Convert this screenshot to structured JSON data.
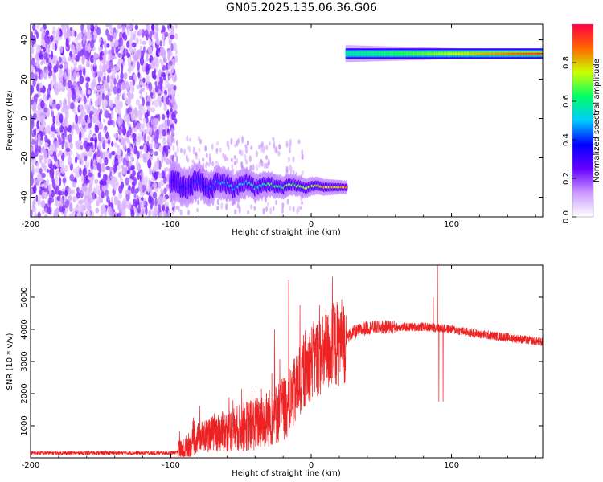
{
  "title": "GN05.2025.135.06.36.G06",
  "chart_data": [
    {
      "type": "heatmap",
      "title": "GN05.2025.135.06.36.G06",
      "xlabel": "Height of straight line (km)",
      "ylabel": "Frequency (Hz)",
      "xlim": [
        -200,
        165
      ],
      "ylim": [
        -50,
        48
      ],
      "x_ticks": [
        -200,
        -100,
        0,
        100
      ],
      "y_ticks": [
        -40,
        -20,
        0,
        20,
        40
      ],
      "colorbar": {
        "label": "Normalized spectral amplitude",
        "range": [
          0,
          1
        ],
        "ticks": [
          "0.0",
          "0.2",
          "0.4",
          "0.6",
          "0.8"
        ],
        "colors": [
          "#ffffff",
          "#cc99ff",
          "#6600ff",
          "#0000ff",
          "#00ccff",
          "#00ff66",
          "#ccff00",
          "#ff6600",
          "#ff0044"
        ]
      },
      "features": [
        {
          "name": "noise",
          "x_range": [
            -200,
            -100
          ],
          "freq_range": [
            -50,
            48
          ],
          "amplitude": 0.1
        },
        {
          "name": "descending track",
          "x_range": [
            -100,
            25
          ],
          "freq_start": -33,
          "freq_end": -35,
          "amplitude_start": 0.3,
          "amplitude_end": 0.85
        },
        {
          "name": "upper track",
          "x_range": [
            25,
            165
          ],
          "freq": 33,
          "amplitude_start": 0.5,
          "amplitude_end": 0.95
        }
      ]
    },
    {
      "type": "line",
      "xlabel": "Height of straight line (km)",
      "ylabel": "SNR (10 * v/v)",
      "xlim": [
        -200,
        165
      ],
      "ylim": [
        0,
        6000
      ],
      "x_ticks": [
        -200,
        -100,
        0,
        100
      ],
      "y_ticks": [
        1000,
        2000,
        3000,
        4000,
        5000
      ],
      "color": "#ee2222",
      "series": [
        {
          "x": [
            -200,
            -150,
            -100,
            -92,
            -80,
            -60,
            -40,
            -25,
            -15,
            -10,
            -5,
            0,
            10,
            20,
            30,
            40,
            50,
            60,
            70,
            80,
            90,
            100,
            120,
            140,
            165
          ],
          "y": [
            150,
            150,
            150,
            200,
            650,
            850,
            1050,
            1350,
            1750,
            2200,
            2650,
            3000,
            3250,
            3600,
            3900,
            4050,
            4070,
            4070,
            4070,
            4080,
            4050,
            4000,
            3850,
            3750,
            3600
          ]
        }
      ],
      "spikes": [
        {
          "x": -26,
          "y": 4000
        },
        {
          "x": -16,
          "y": 5550
        },
        {
          "x": -8,
          "y": 4750
        },
        {
          "x": 87,
          "y": 5000
        },
        {
          "x": 90,
          "y": 6000
        },
        {
          "x": 91,
          "y": 1750
        },
        {
          "x": 94,
          "y": 1750
        }
      ]
    }
  ]
}
